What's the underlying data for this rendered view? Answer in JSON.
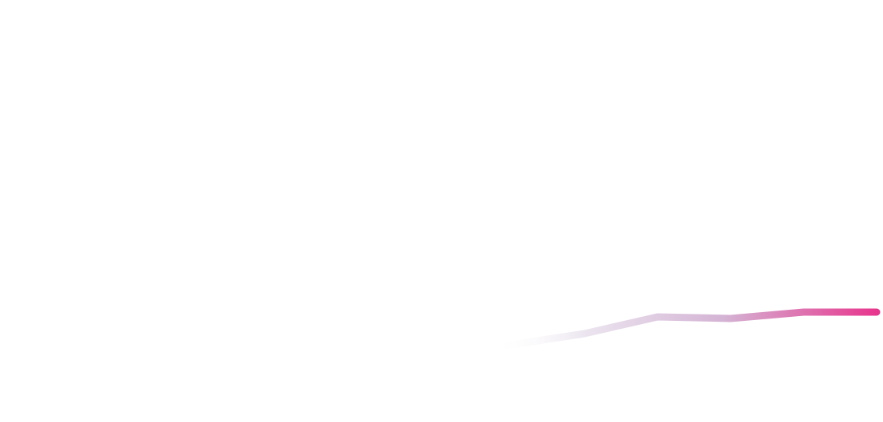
{
  "chart_data": {
    "type": "line",
    "x": [
      1,
      2,
      3,
      4,
      5,
      6,
      7,
      8,
      9,
      10,
      11,
      12
    ],
    "series": [
      {
        "values": [
          60,
          64,
          68,
          71,
          77,
          85,
          97,
          111,
          132,
          130,
          138,
          138
        ]
      }
    ],
    "ylim": [
      0,
      530
    ],
    "xlim": [
      0,
      12
    ],
    "grid": false,
    "legend": "none",
    "colors": {
      "gradient_start": "#ffffff",
      "gradient_mid": "#d4b3d4",
      "gradient_end": "#e8308a"
    }
  }
}
